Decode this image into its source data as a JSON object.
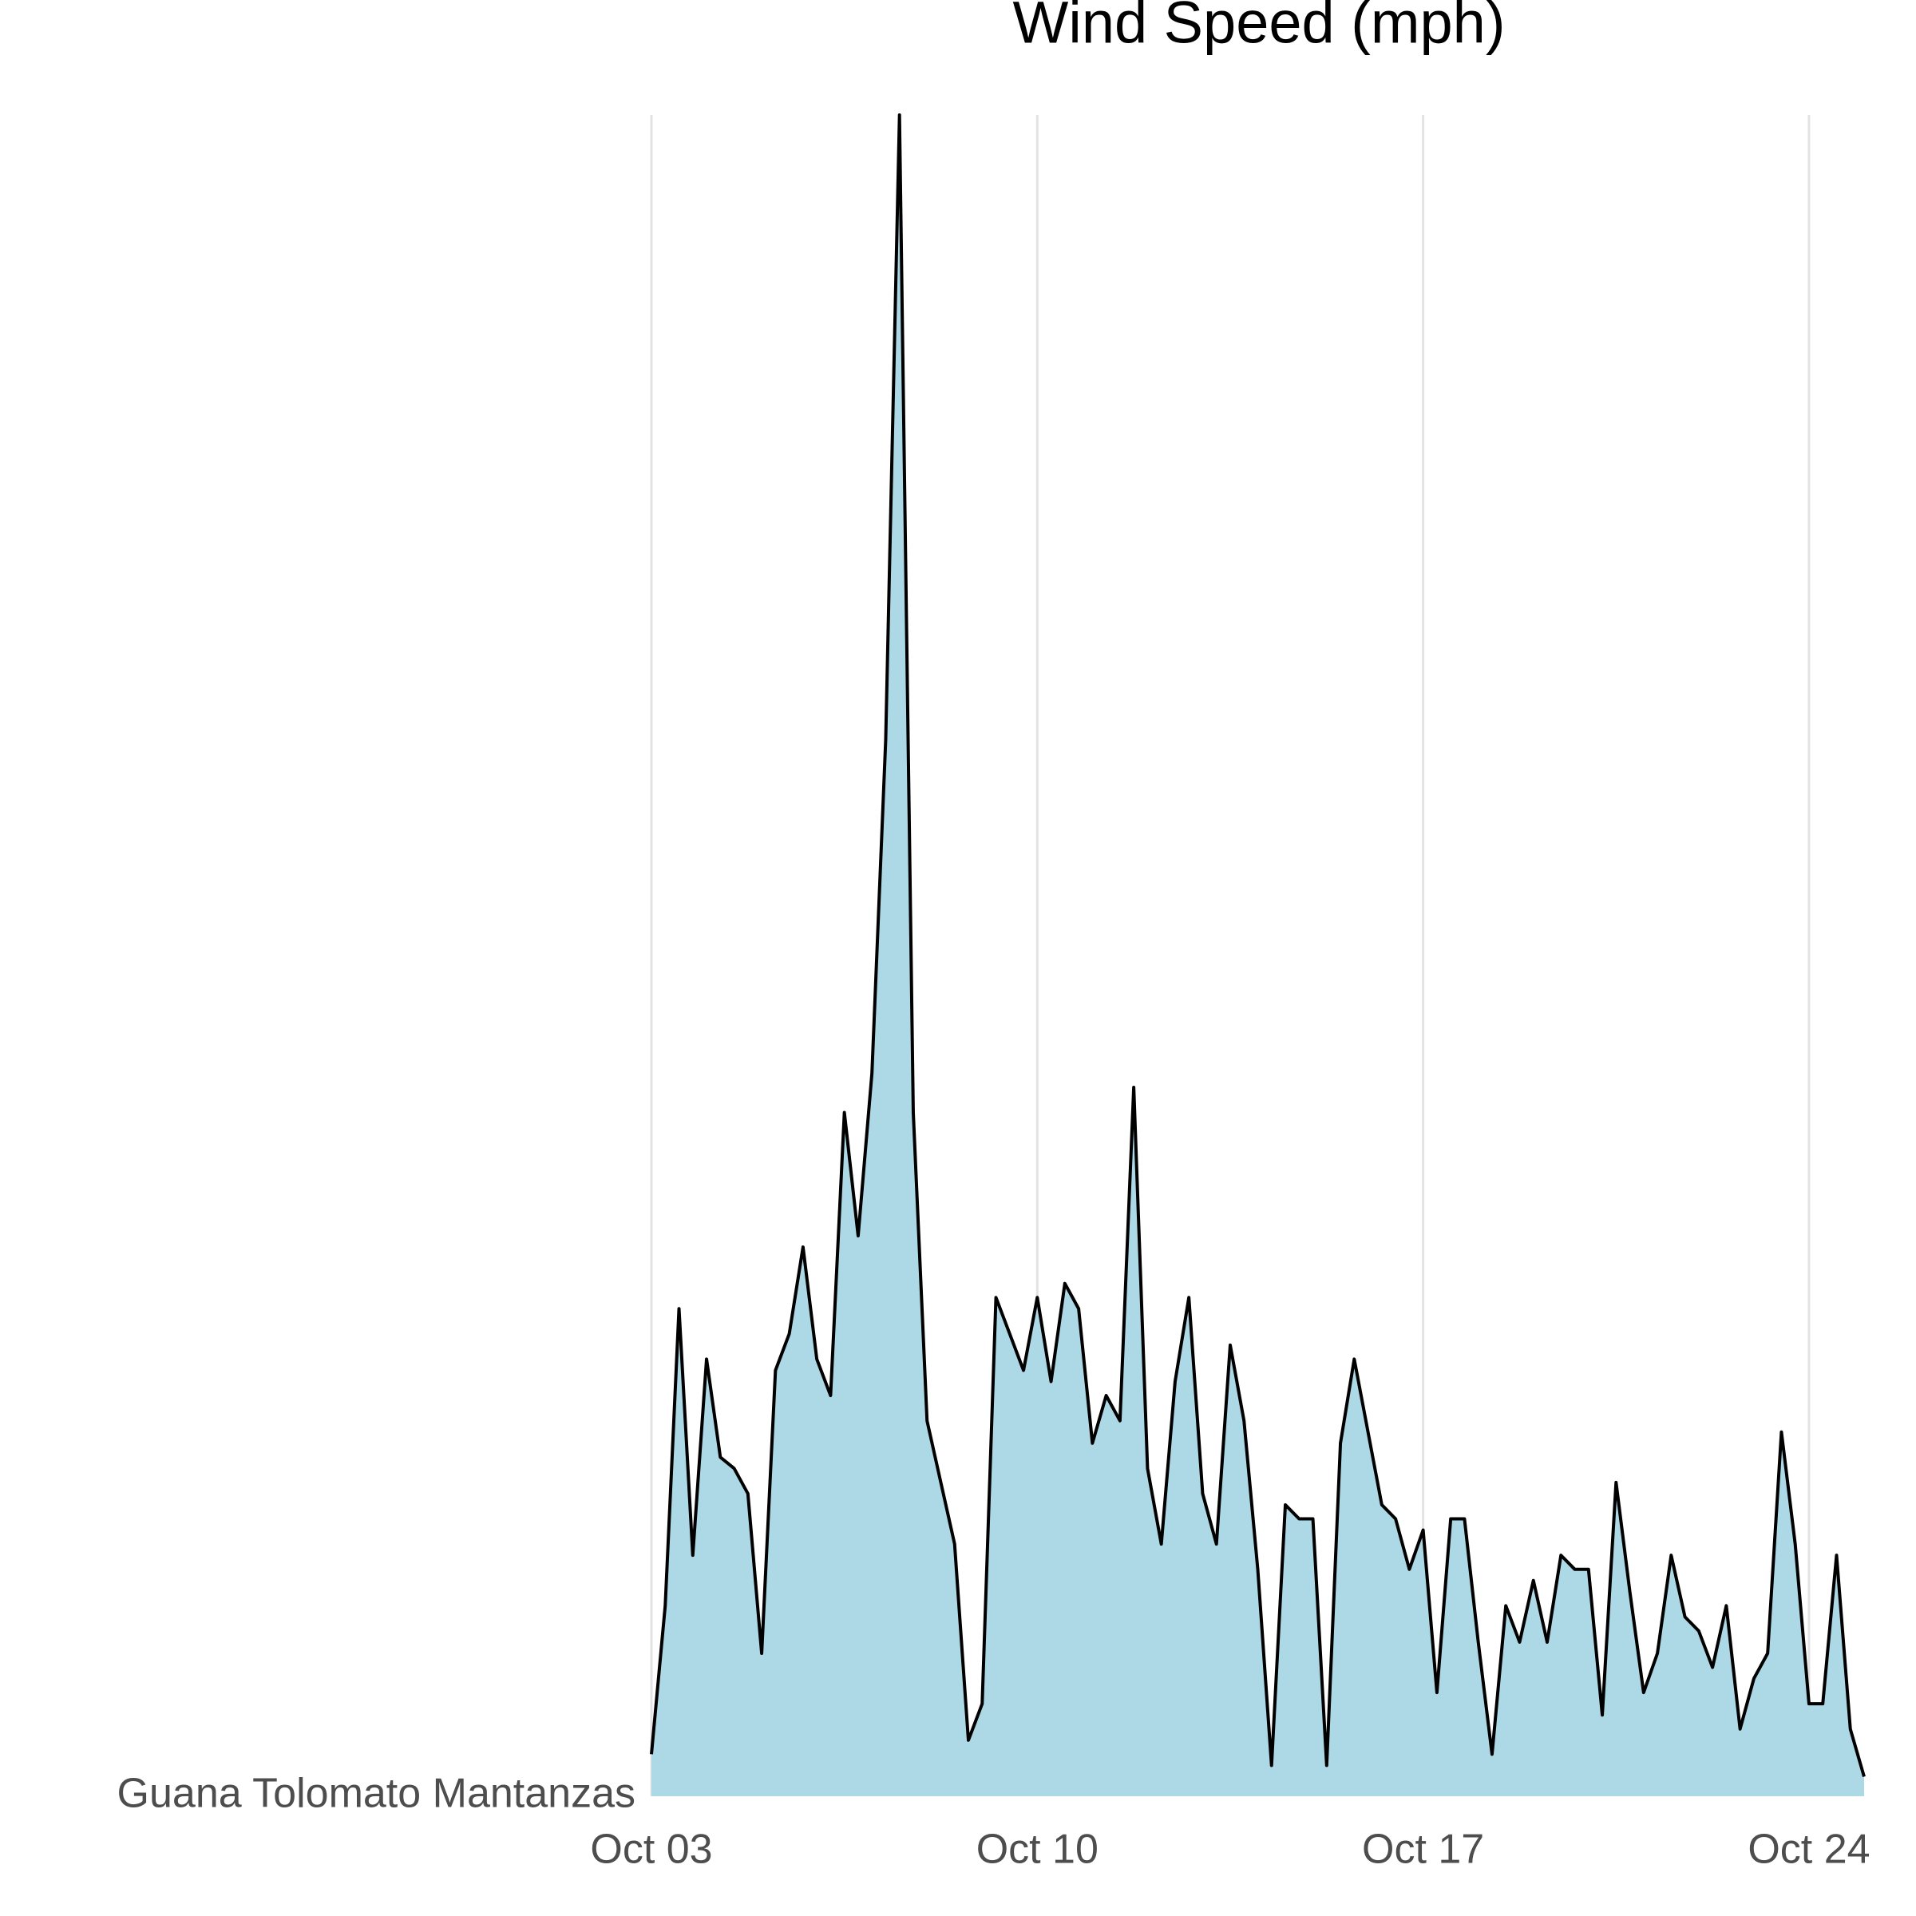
{
  "chart_data": {
    "type": "area",
    "title": "Wind Speed (mph)",
    "x": [
      3.0,
      3.25,
      3.5,
      3.75,
      4.0,
      4.25,
      4.5,
      4.75,
      5.0,
      5.25,
      5.5,
      5.75,
      6.0,
      6.25,
      6.5,
      6.75,
      7.0,
      7.25,
      7.5,
      7.75,
      8.0,
      8.25,
      8.5,
      8.75,
      9.0,
      9.25,
      9.5,
      9.75,
      10.0,
      10.25,
      10.5,
      10.75,
      11.0,
      11.25,
      11.5,
      11.75,
      12.0,
      12.25,
      12.5,
      12.75,
      13.0,
      13.25,
      13.5,
      13.75,
      14.0,
      14.25,
      14.5,
      14.75,
      15.0,
      15.25,
      15.5,
      15.75,
      16.0,
      16.25,
      16.5,
      16.75,
      17.0,
      17.25,
      17.5,
      17.75,
      18.0,
      18.25,
      18.5,
      18.75,
      19.0,
      19.25,
      19.5,
      19.75,
      20.0,
      20.25,
      20.5,
      20.75,
      21.0,
      21.25,
      21.5,
      21.75,
      22.0,
      22.25,
      22.5,
      22.75,
      23.0,
      23.25,
      23.5,
      23.75,
      24.0,
      24.25,
      24.5,
      24.75,
      25.0
    ],
    "series": [
      {
        "name": "Guana Tolomato Mantanzas",
        "color": "#add8e6",
        "line_color": "#000000",
        "values": [
          1.5,
          6.8,
          17.4,
          8.6,
          15.6,
          12.1,
          11.7,
          10.8,
          5.1,
          15.2,
          16.5,
          19.6,
          15.6,
          14.3,
          24.4,
          20.0,
          25.8,
          37.7,
          60,
          24.4,
          13.4,
          11.2,
          9.0,
          2.0,
          3.3,
          17.8,
          16.5,
          15.2,
          17.8,
          14.8,
          18.3,
          17.4,
          12.6,
          14.3,
          13.4,
          25.3,
          11.7,
          9.0,
          14.8,
          17.8,
          10.8,
          9.0,
          16.1,
          13.4,
          8.1,
          1.1,
          10.4,
          9.9,
          9.9,
          1.1,
          12.6,
          15.6,
          13.0,
          10.4,
          9.9,
          8.1,
          9.5,
          3.7,
          9.9,
          9.9,
          5.5,
          1.5,
          6.8,
          5.5,
          7.7,
          5.5,
          8.6,
          8.1,
          8.1,
          2.9,
          11.2,
          7.3,
          3.7,
          5.1,
          8.6,
          6.4,
          5.9,
          4.6,
          6.8,
          2.4,
          4.2,
          5.1,
          13.0,
          9.0,
          3.3,
          3.3,
          8.6,
          2.4,
          0.7
        ]
      }
    ],
    "xlim": [
      3,
      25
    ],
    "xticks": [
      {
        "value": 3,
        "label": "Oct 03"
      },
      {
        "value": 10,
        "label": "Oct 10"
      },
      {
        "value": 17,
        "label": "Oct 17"
      },
      {
        "value": 24,
        "label": "Oct 24"
      }
    ],
    "ylim": [
      0,
      60
    ],
    "grid": true
  }
}
